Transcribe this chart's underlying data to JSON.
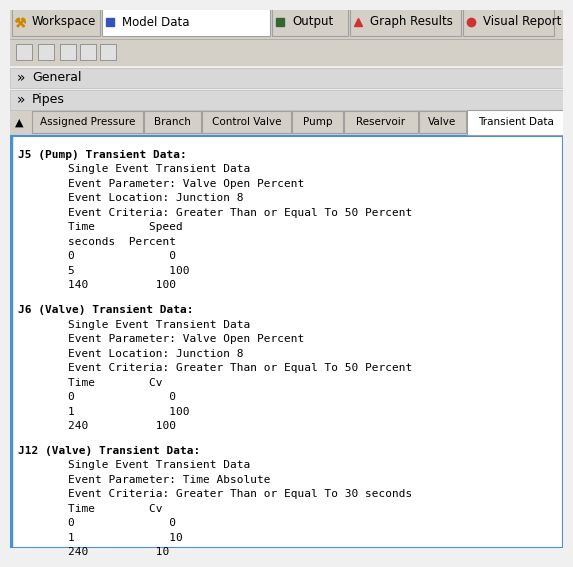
{
  "bg_color": "#f0f0f0",
  "content_bg": "#ffffff",
  "top_tabs": [
    "Workspace",
    "Model Data",
    "Output",
    "Graph Results",
    "Visual Report"
  ],
  "active_top_tab": "Model Data",
  "section_tabs": [
    "Assigned Pressure",
    "Branch",
    "Control Valve",
    "Pump",
    "Reservoir",
    "Valve",
    "Transient Data"
  ],
  "active_section_tab": "Transient Data",
  "content_lines": [
    {
      "text": "J5 (Pump) Transient Data:",
      "indent": 0,
      "bold": true
    },
    {
      "text": "Single Event Transient Data",
      "indent": 1
    },
    {
      "text": "Event Parameter: Valve Open Percent",
      "indent": 1
    },
    {
      "text": "Event Location: Junction 8",
      "indent": 1
    },
    {
      "text": "Event Criteria: Greater Than or Equal To 50 Percent",
      "indent": 1
    },
    {
      "text": "Time        Speed",
      "indent": 1
    },
    {
      "text": "seconds  Percent",
      "indent": 1
    },
    {
      "text": "0              0",
      "indent": 1
    },
    {
      "text": "5              100",
      "indent": 1
    },
    {
      "text": "140          100",
      "indent": 1
    },
    {
      "text": "",
      "indent": 0
    },
    {
      "text": "J6 (Valve) Transient Data:",
      "indent": 0,
      "bold": true
    },
    {
      "text": "Single Event Transient Data",
      "indent": 1
    },
    {
      "text": "Event Parameter: Valve Open Percent",
      "indent": 1
    },
    {
      "text": "Event Location: Junction 8",
      "indent": 1
    },
    {
      "text": "Event Criteria: Greater Than or Equal To 50 Percent",
      "indent": 1
    },
    {
      "text": "Time        Cv",
      "indent": 1
    },
    {
      "text": "0              0",
      "indent": 1
    },
    {
      "text": "1              100",
      "indent": 1
    },
    {
      "text": "240          100",
      "indent": 1
    },
    {
      "text": "",
      "indent": 0
    },
    {
      "text": "J12 (Valve) Transient Data:",
      "indent": 0,
      "bold": true
    },
    {
      "text": "Single Event Transient Data",
      "indent": 1
    },
    {
      "text": "Event Parameter: Time Absolute",
      "indent": 1
    },
    {
      "text": "Event Criteria: Greater Than or Equal To 30 seconds",
      "indent": 1
    },
    {
      "text": "Time        Cv",
      "indent": 1
    },
    {
      "text": "0              0",
      "indent": 1
    },
    {
      "text": "1              10",
      "indent": 1
    },
    {
      "text": "240          10",
      "indent": 1
    }
  ],
  "border_color": "#4a90d9",
  "text_color": "#000000",
  "tab_text_color": "#000000",
  "top_tab_widths": [
    90,
    170,
    78,
    113,
    93
  ],
  "sec_tab_widths": [
    112,
    58,
    90,
    52,
    75,
    48,
    100
  ]
}
